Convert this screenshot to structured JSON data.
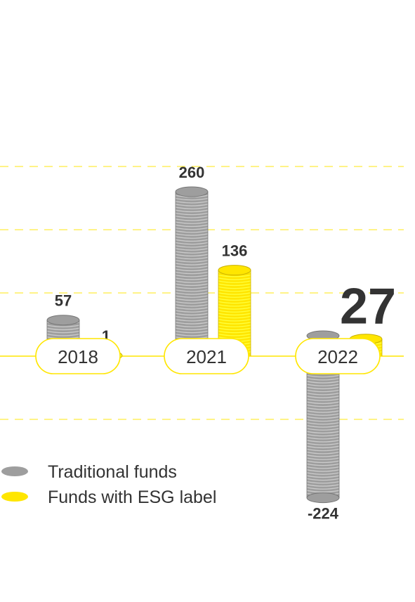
{
  "chart_data": {
    "type": "bar",
    "categories": [
      "2018",
      "2021",
      "2022"
    ],
    "series": [
      {
        "name": "Traditional funds",
        "values": [
          57,
          260,
          -224
        ],
        "color": "#9e9e9e"
      },
      {
        "name": "Funds with ESG label",
        "values": [
          1,
          136,
          27
        ],
        "color": "#ffe600"
      }
    ],
    "value_labels": [
      [
        "57",
        "260",
        "-224"
      ],
      [
        "1",
        "136",
        "27"
      ]
    ],
    "highlighted_label": {
      "series": 1,
      "category": 2
    },
    "ylim": [
      -290,
      280
    ],
    "grid": true,
    "grid_values": [
      -100,
      100,
      200,
      300
    ],
    "zero_line_color": "#ffe600",
    "grid_color": "#ffe600",
    "legend": {
      "placement": "bottom-left"
    },
    "title": "",
    "xlabel": "",
    "ylabel": ""
  }
}
